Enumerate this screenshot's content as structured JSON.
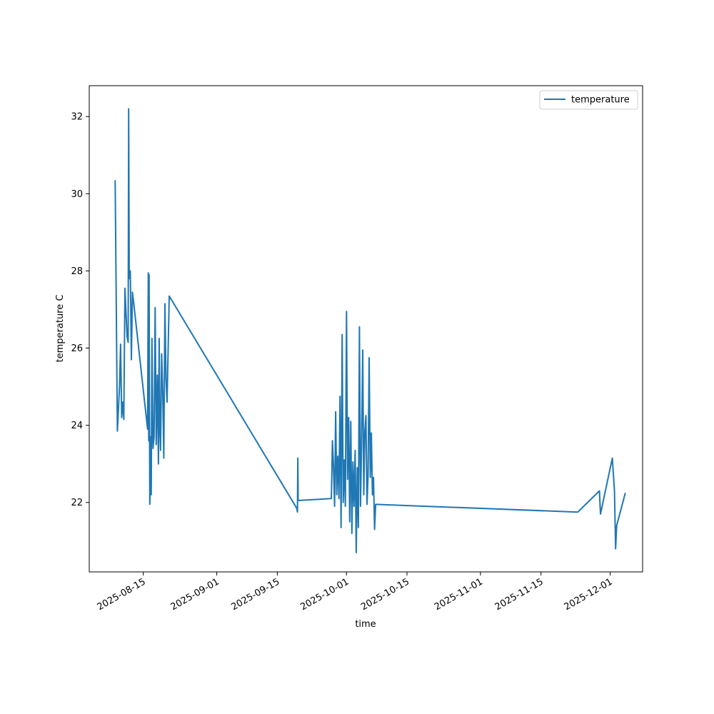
{
  "chart_data": {
    "type": "line",
    "title": "",
    "xlabel": "time",
    "ylabel": "temperature C",
    "x_is_date": true,
    "xlim": [
      "2025-08-02T12:00",
      "2025-12-08T12:00"
    ],
    "ylim": [
      20.2,
      32.8
    ],
    "x_ticks": [
      "2025-08-15",
      "2025-09-01",
      "2025-09-15",
      "2025-10-01",
      "2025-10-15",
      "2025-11-01",
      "2025-11-15",
      "2025-12-01"
    ],
    "y_ticks": [
      22,
      24,
      26,
      28,
      30,
      32
    ],
    "grid": false,
    "legend": {
      "position": "top-right",
      "entries": [
        "temperature"
      ]
    },
    "series": [
      {
        "name": "temperature",
        "color": "#1f77b4",
        "points": [
          [
            "2025-08-08T12:00",
            30.35
          ],
          [
            "2025-08-09T00:00",
            23.85
          ],
          [
            "2025-08-09T12:00",
            25.0
          ],
          [
            "2025-08-09T18:00",
            26.1
          ],
          [
            "2025-08-10T00:00",
            24.2
          ],
          [
            "2025-08-10T06:00",
            24.6
          ],
          [
            "2025-08-10T12:00",
            24.15
          ],
          [
            "2025-08-10T18:00",
            27.55
          ],
          [
            "2025-08-11T00:00",
            26.9
          ],
          [
            "2025-08-11T06:00",
            26.3
          ],
          [
            "2025-08-11T12:00",
            26.15
          ],
          [
            "2025-08-11T15:00",
            32.2
          ],
          [
            "2025-08-11T18:00",
            27.8
          ],
          [
            "2025-08-12T00:00",
            28.0
          ],
          [
            "2025-08-12T06:00",
            25.7
          ],
          [
            "2025-08-12T12:00",
            27.45
          ],
          [
            "2025-08-12T18:00",
            27.2
          ],
          [
            "2025-08-16T00:00",
            23.9
          ],
          [
            "2025-08-16T04:00",
            27.95
          ],
          [
            "2025-08-16T06:00",
            23.6
          ],
          [
            "2025-08-16T08:00",
            27.9
          ],
          [
            "2025-08-16T12:00",
            21.95
          ],
          [
            "2025-08-16T14:00",
            22.3
          ],
          [
            "2025-08-16T16:00",
            23.7
          ],
          [
            "2025-08-16T20:00",
            22.2
          ],
          [
            "2025-08-17T00:00",
            26.25
          ],
          [
            "2025-08-17T06:00",
            23.4
          ],
          [
            "2025-08-17T12:00",
            23.7
          ],
          [
            "2025-08-17T18:00",
            27.05
          ],
          [
            "2025-08-18T00:00",
            23.5
          ],
          [
            "2025-08-18T06:00",
            25.3
          ],
          [
            "2025-08-18T12:00",
            23.0
          ],
          [
            "2025-08-18T16:00",
            26.25
          ],
          [
            "2025-08-18T20:00",
            23.9
          ],
          [
            "2025-08-19T00:00",
            23.35
          ],
          [
            "2025-08-19T06:00",
            25.85
          ],
          [
            "2025-08-19T12:00",
            24.9
          ],
          [
            "2025-08-19T18:00",
            23.15
          ],
          [
            "2025-08-20T00:00",
            27.15
          ],
          [
            "2025-08-20T06:00",
            25.2
          ],
          [
            "2025-08-20T12:00",
            24.6
          ],
          [
            "2025-08-21T00:00",
            27.35
          ],
          [
            "2025-09-19T12:00",
            21.85
          ],
          [
            "2025-09-19T16:00",
            21.75
          ],
          [
            "2025-09-19T18:00",
            23.15
          ],
          [
            "2025-09-19T20:00",
            22.05
          ],
          [
            "2025-09-27T12:00",
            22.1
          ],
          [
            "2025-09-27T18:00",
            23.6
          ],
          [
            "2025-09-28T00:00",
            22.9
          ],
          [
            "2025-09-28T06:00",
            21.9
          ],
          [
            "2025-09-28T12:00",
            24.35
          ],
          [
            "2025-09-28T18:00",
            22.2
          ],
          [
            "2025-09-29T00:00",
            23.2
          ],
          [
            "2025-09-29T06:00",
            22.1
          ],
          [
            "2025-09-29T12:00",
            24.75
          ],
          [
            "2025-09-29T18:00",
            21.35
          ],
          [
            "2025-09-30T00:00",
            26.35
          ],
          [
            "2025-09-30T06:00",
            22.0
          ],
          [
            "2025-09-30T12:00",
            23.1
          ],
          [
            "2025-09-30T18:00",
            21.9
          ],
          [
            "2025-10-01T00:00",
            26.95
          ],
          [
            "2025-10-01T06:00",
            22.6
          ],
          [
            "2025-10-01T12:00",
            24.2
          ],
          [
            "2025-10-01T18:00",
            21.5
          ],
          [
            "2025-10-02T00:00",
            24.1
          ],
          [
            "2025-10-02T06:00",
            21.2
          ],
          [
            "2025-10-02T12:00",
            23.05
          ],
          [
            "2025-10-02T18:00",
            21.9
          ],
          [
            "2025-10-03T00:00",
            23.35
          ],
          [
            "2025-10-03T06:00",
            20.7
          ],
          [
            "2025-10-03T12:00",
            22.9
          ],
          [
            "2025-10-03T18:00",
            21.35
          ],
          [
            "2025-10-04T00:00",
            26.55
          ],
          [
            "2025-10-04T06:00",
            21.9
          ],
          [
            "2025-10-04T12:00",
            23.5
          ],
          [
            "2025-10-04T18:00",
            25.95
          ],
          [
            "2025-10-05T00:00",
            22.2
          ],
          [
            "2025-10-05T06:00",
            23.85
          ],
          [
            "2025-10-05T12:00",
            24.25
          ],
          [
            "2025-10-05T18:00",
            21.95
          ],
          [
            "2025-10-06T00:00",
            22.7
          ],
          [
            "2025-10-06T06:00",
            25.75
          ],
          [
            "2025-10-06T12:00",
            22.65
          ],
          [
            "2025-10-06T18:00",
            23.8
          ],
          [
            "2025-10-07T00:00",
            22.2
          ],
          [
            "2025-10-07T06:00",
            22.65
          ],
          [
            "2025-10-07T12:00",
            21.3
          ],
          [
            "2025-10-07T18:00",
            21.95
          ],
          [
            "2025-11-23T12:00",
            21.75
          ],
          [
            "2025-11-28T12:00",
            22.3
          ],
          [
            "2025-11-28T18:00",
            21.7
          ],
          [
            "2025-12-01T12:00",
            23.15
          ],
          [
            "2025-12-02T00:00",
            22.3
          ],
          [
            "2025-12-02T06:00",
            20.8
          ],
          [
            "2025-12-02T12:00",
            21.4
          ],
          [
            "2025-12-04T12:00",
            22.25
          ]
        ]
      }
    ]
  }
}
